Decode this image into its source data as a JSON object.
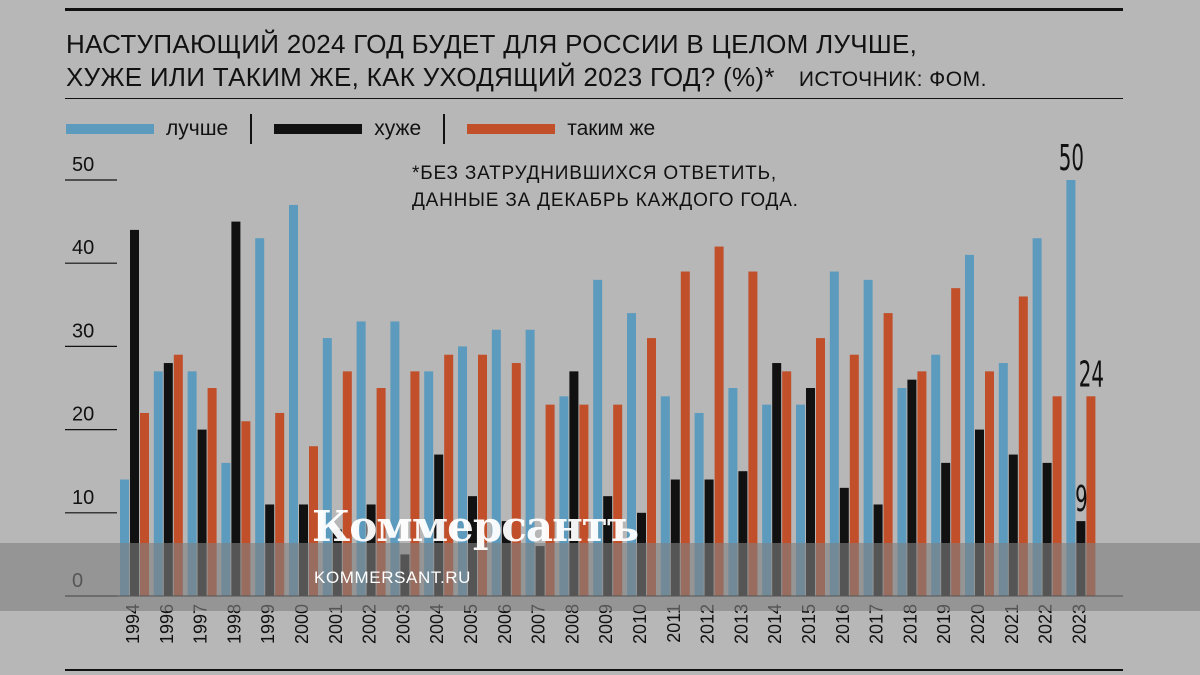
{
  "header": {
    "title_line1": "НАСТУПАЮЩИЙ 2024 ГОД БУДЕТ ДЛЯ РОССИИ В ЦЕЛОМ ЛУЧШЕ,",
    "title_line2": "ХУЖЕ ИЛИ ТАКИМ ЖЕ, КАК УХОДЯЩИЙ 2023 ГОД? (%)*",
    "source": "ИСТОЧНИК: ФОМ."
  },
  "note": {
    "line1": "*БЕЗ ЗАТРУДНИВШИХСЯ ОТВЕТИТЬ,",
    "line2": "ДАННЫЕ ЗА ДЕКАБРЬ КАЖДОГО ГОДА."
  },
  "watermark": {
    "logo": "Коммерсантъ",
    "url": "KOMMERSANT.RU"
  },
  "colors": {
    "background": "#b7b7b7",
    "better": "#5c9bbd",
    "worse": "#111111",
    "same": "#c04f2a",
    "text": "#111111"
  },
  "chart_data": {
    "type": "bar",
    "title": "НАСТУПАЮЩИЙ 2024 ГОД БУДЕТ ДЛЯ РОССИИ В ЦЕЛОМ ЛУЧШЕ, ХУЖЕ ИЛИ ТАКИМ ЖЕ, КАК УХОДЯЩИЙ 2023 ГОД? (%)*",
    "categories": [
      "1994",
      "1996",
      "1997",
      "1998",
      "1999",
      "2000",
      "2001",
      "2002",
      "2003",
      "2004",
      "2005",
      "2006",
      "2007",
      "2008",
      "2009",
      "2010",
      "2011",
      "2012",
      "2013",
      "2014",
      "2015",
      "2016",
      "2017",
      "2018",
      "2019",
      "2020",
      "2021",
      "2022",
      "2023"
    ],
    "series": [
      {
        "name": "лучше",
        "color": "#5c9bbd",
        "values": [
          14,
          27,
          27,
          16,
          43,
          47,
          31,
          33,
          33,
          27,
          30,
          32,
          32,
          24,
          38,
          34,
          24,
          22,
          25,
          23,
          23,
          39,
          38,
          25,
          29,
          41,
          28,
          43,
          50
        ]
      },
      {
        "name": "хуже",
        "color": "#111111",
        "values": [
          44,
          28,
          20,
          45,
          11,
          11,
          8,
          11,
          5,
          17,
          12,
          9,
          6,
          27,
          12,
          10,
          14,
          14,
          15,
          28,
          25,
          13,
          11,
          26,
          16,
          20,
          17,
          16,
          9
        ]
      },
      {
        "name": "таким же",
        "color": "#c04f2a",
        "values": [
          22,
          29,
          25,
          21,
          22,
          18,
          27,
          25,
          27,
          29,
          29,
          28,
          23,
          23,
          23,
          31,
          39,
          42,
          39,
          27,
          31,
          29,
          34,
          27,
          37,
          27,
          36,
          24,
          24
        ]
      }
    ],
    "yticks": [
      0,
      10,
      20,
      30,
      40,
      50
    ],
    "ylim": [
      0,
      50
    ],
    "last_value_labels": [
      "50",
      "9",
      "24"
    ],
    "legend_position": "top-left",
    "grid": false
  }
}
